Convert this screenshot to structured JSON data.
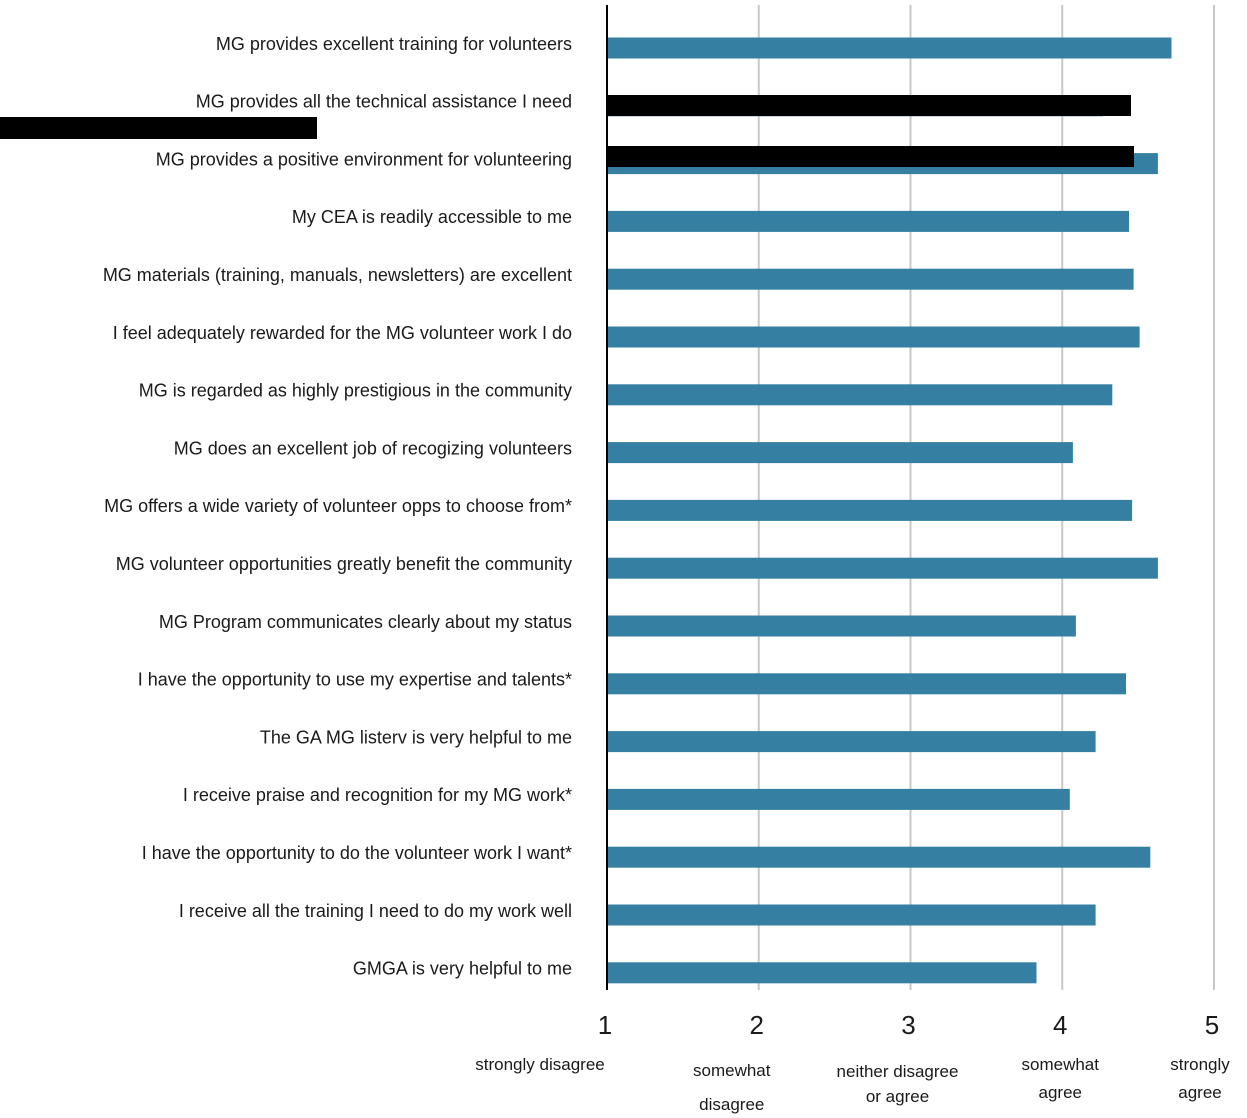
{
  "chart_data": {
    "type": "bar",
    "orientation": "horizontal",
    "title": "",
    "xlabel": "",
    "ylabel": "",
    "xlim": [
      1,
      5
    ],
    "ticks": [
      1,
      2,
      3,
      4,
      5
    ],
    "grid": true,
    "colors": {
      "bar": "#357fa3",
      "redaction": "#000000",
      "grid": "#c8c8c8",
      "axis": "#000000"
    },
    "categories": [
      "MG provides excellent training for volunteers",
      "MG provides all the technical assistance I need",
      "MG provides a positive environment for volunteering",
      "My CEA is readily accessible to me",
      "MG materials (training, manuals, newsletters) are excellent",
      "I feel adequately rewarded for the MG volunteer work I do",
      "MG is regarded as highly prestigious in the community",
      "MG does an excellent job of recogizing volunteers",
      "MG offers a wide variety of volunteer opps to choose from*",
      "MG volunteer opportunities greatly benefit the community",
      "MG Program communicates clearly about my status",
      "I have the opportunity to use my expertise and talents*",
      "The GA MG listerv is very helpful to me",
      "I receive praise and recognition for my MG work*",
      "I have the opportunity to do the volunteer work I want*",
      "I receive all the training I need to do my work well",
      "GMGA is very helpful to me"
    ],
    "values": [
      4.72,
      4.27,
      4.63,
      4.44,
      4.47,
      4.51,
      4.33,
      4.07,
      4.46,
      4.63,
      4.09,
      4.42,
      4.22,
      4.05,
      4.58,
      4.22,
      3.83
    ],
    "scale_labels": [
      {
        "x": 1,
        "lines": [
          "strongly disagree"
        ]
      },
      {
        "x": 2,
        "lines": [
          "somewhat",
          "disagree"
        ]
      },
      {
        "x": 3,
        "lines": [
          "neither disagree",
          "or agree"
        ]
      },
      {
        "x": 4,
        "lines": [
          "somewhat",
          "agree"
        ]
      },
      {
        "x": 5,
        "lines": [
          "strongly",
          "agree"
        ]
      }
    ]
  }
}
